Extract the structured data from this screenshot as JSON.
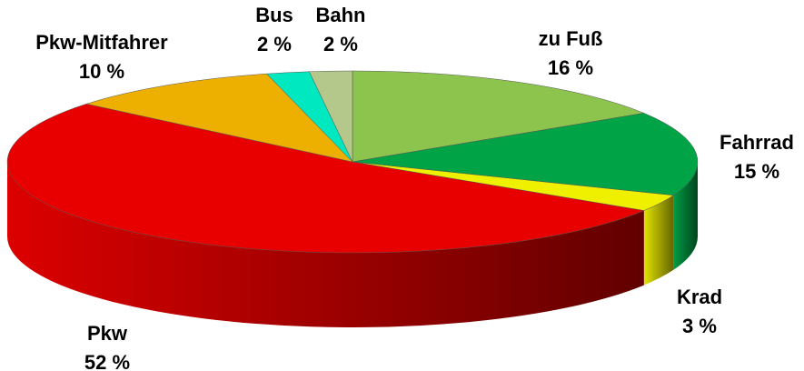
{
  "chart_data": {
    "type": "pie",
    "categories": [
      "zu Fuß",
      "Fahrrad",
      "Krad",
      "Pkw",
      "Pkw-Mitfahrer",
      "Bus",
      "Bahn"
    ],
    "values": [
      16,
      15,
      3,
      52,
      10,
      2,
      2
    ],
    "value_labels": [
      "16 %",
      "15 %",
      "3 %",
      "52 %",
      "10 %",
      "2 %",
      "2 %"
    ],
    "colors": [
      "#8cc44e",
      "#00a346",
      "#eef000",
      "#e80000",
      "#eeb000",
      "#00e8c0",
      "#b4c88c"
    ]
  }
}
